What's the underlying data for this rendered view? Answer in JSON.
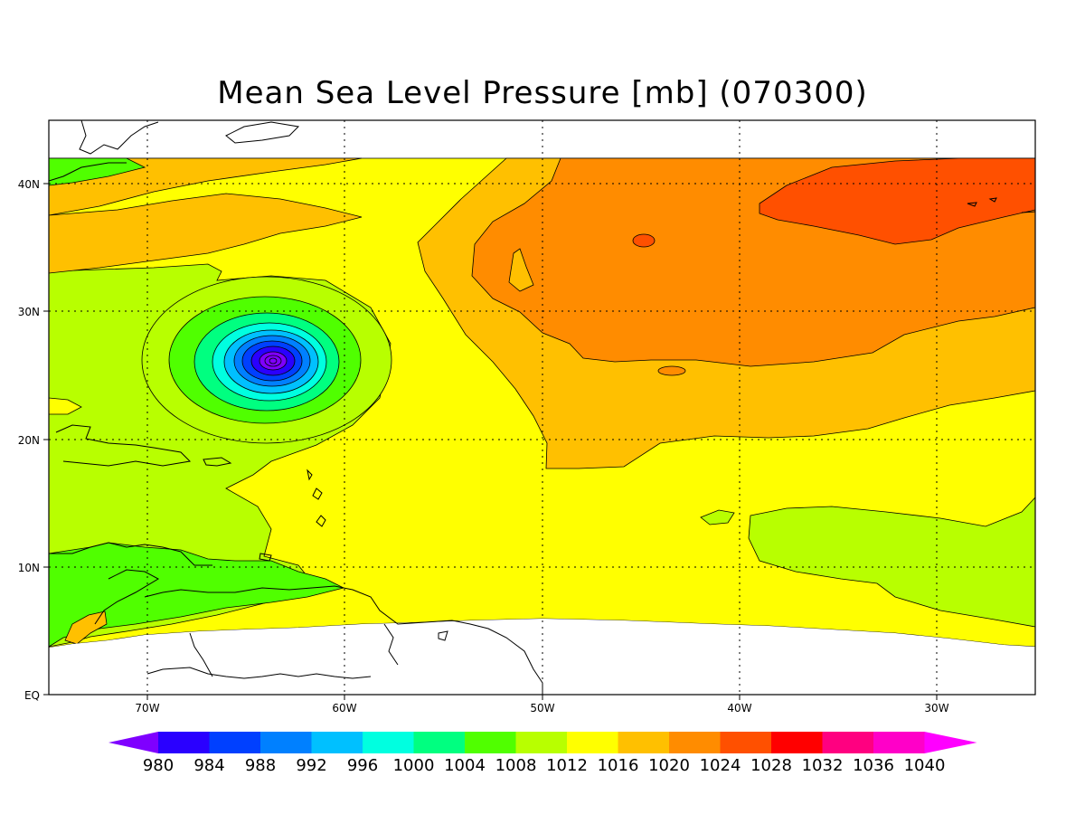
{
  "title": "Mean Sea Level Pressure [mb] (070300)",
  "lon_ticks": [
    "70W",
    "60W",
    "50W",
    "40W",
    "30W"
  ],
  "lat_ticks": [
    "EQ",
    "10N",
    "20N",
    "30N",
    "40N"
  ],
  "lon_values": [
    -70,
    -60,
    -50,
    -40,
    -30
  ],
  "lat_values": [
    0,
    10,
    20,
    30,
    40
  ],
  "extent": {
    "lon_min": -75,
    "lon_max": -25,
    "lat_min": 0,
    "lat_max": 45
  },
  "colorbar": {
    "levels": [
      "980",
      "984",
      "988",
      "992",
      "996",
      "1000",
      "1004",
      "1008",
      "1012",
      "1016",
      "1020",
      "1024",
      "1028",
      "1032",
      "1036",
      "1040"
    ],
    "colors": [
      "#7f00ff",
      "#2a00ff",
      "#0040ff",
      "#0080ff",
      "#00c0ff",
      "#00ffe0",
      "#00ff80",
      "#50ff00",
      "#b8ff00",
      "#ffff00",
      "#ffc000",
      "#ff8c00",
      "#ff5000",
      "#ff0000",
      "#ff0080",
      "#ff00c8",
      "#ff00ff"
    ]
  },
  "low_center": {
    "lon": -64,
    "lat": 26,
    "min_pressure_level": "980"
  }
}
